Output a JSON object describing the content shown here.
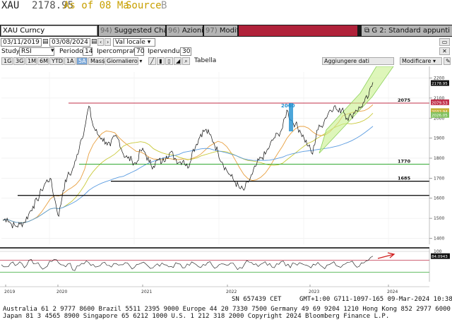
{
  "title": {
    "symbol": "XAU",
    "price": "2178.95",
    "as_of": "As of 08 Ma",
    "source": "Source",
    "source_suffix": "B"
  },
  "toolbar": {
    "security": "XAU Curncy",
    "suggested_num": "94)",
    "suggested_label": "Suggested Charts",
    "actions_num": "96)",
    "actions_label": "Azioni",
    "edit_num": "97)",
    "edit_label": "Modif",
    "g2_label": "G 2: Standard appunti"
  },
  "controls": {
    "date_from": "03/11/2019",
    "date_to": "03/08/2024",
    "currency": "Val locale",
    "study_label": "Study",
    "study_value": "RSI",
    "period_label": "Periodo",
    "period_value": "14",
    "overbought_label": "Ipercomprato",
    "overbought_value": "70",
    "oversold_label": "Ipervenduto",
    "oversold_value": "30",
    "ranges": [
      "1G",
      "3G",
      "1M",
      "6M",
      "YTD",
      "1A",
      "5A",
      "Mass"
    ],
    "selected_range": "5A",
    "frequency": "Giornaliero",
    "table_label": "Tabella",
    "add_data": "Aggiungere dati",
    "modify": "Modificare"
  },
  "chart_data": {
    "type": "line",
    "x_tick_labels": [
      "2019",
      "2020",
      "2021",
      "2022",
      "2023",
      "2024"
    ],
    "price_axis_ticks": [
      1400,
      1500,
      1600,
      1700,
      1800,
      1900,
      2000,
      2100,
      2200
    ],
    "ylim": [
      1370,
      2230
    ],
    "last_price_label": "2178.95",
    "price_box_labels": [
      "2079.53",
      "2032.94",
      "2026.05"
    ],
    "horizontal_levels": [
      {
        "value": 2075,
        "label": "2075",
        "color": "#c0304a"
      },
      {
        "value": 1770,
        "label": "1770",
        "color": "#33aa33"
      },
      {
        "value": 1685,
        "label": "1685",
        "color": "#000000"
      },
      {
        "value": 1614,
        "label": "",
        "color": "#000000"
      }
    ],
    "annotations": [
      {
        "text": "2060",
        "color": "#1f8fd0"
      }
    ],
    "series": [
      {
        "values": [
          1490,
          1500,
          1470,
          1460,
          1470,
          1480,
          1520,
          1560,
          1590,
          1640,
          1680,
          1700,
          1600,
          1510,
          1640,
          1710,
          1730,
          1790,
          1880,
          1950,
          2060,
          1960,
          1920,
          1900,
          1880,
          1860,
          1910,
          1890,
          1820,
          1800,
          1790,
          1770,
          1840,
          1830,
          1780,
          1760,
          1790,
          1780,
          1810,
          1830,
          1800,
          1780,
          1790,
          1750,
          1830,
          1870,
          1920,
          1940,
          1920,
          1880,
          1830,
          1780,
          1740,
          1710,
          1680,
          1650,
          1640,
          1680,
          1720,
          1770,
          1800,
          1820,
          1860,
          1900,
          1920,
          1950,
          2040,
          1990,
          1970,
          1940,
          1900,
          1860,
          1820,
          1940,
          1960,
          2000,
          2040,
          2060,
          2030,
          2050,
          2000,
          2010,
          2040,
          2050,
          2080,
          2110,
          2178.95
        ]
      }
    ],
    "rsi": {
      "axis_ticks": [
        100
      ],
      "last_value_label": "84.0943",
      "levels": [
        70,
        30
      ],
      "values": [
        55,
        48,
        60,
        52,
        65,
        45,
        70,
        58,
        62,
        40,
        50,
        66,
        72,
        55,
        48,
        60,
        35,
        52,
        58,
        63,
        56,
        49,
        61,
        53,
        47,
        59,
        55,
        62,
        51,
        46,
        57,
        64,
        50,
        44,
        58,
        61,
        54,
        49,
        62,
        57,
        45,
        53,
        60,
        48,
        56,
        63,
        52,
        47,
        58,
        54,
        61,
        50,
        46,
        57,
        64,
        55,
        49,
        60,
        53,
        47,
        58,
        66,
        51,
        45,
        59,
        62,
        55,
        50,
        57,
        63,
        48,
        54,
        60,
        52,
        46,
        58,
        64,
        55,
        49,
        61,
        70,
        84
      ]
    }
  },
  "status": {
    "sn": "SN 657439 CET",
    "gmt": "GMT+1:00 G711-1097-165 09-Mar-2024 10:38",
    "line1": "Australia 61 2 9777 8600 Brazil 5511 2395 9000 Europe 44 20 7330 7500 Germany 49 69 9204 1210 Hong Kong 852 2977 6000",
    "line2": "Japan 81 3 4565 8900         Singapore 65 6212 1000         U.S. 1 212 318 2000          Copyright 2024 Bloomberg Finance L.P."
  }
}
